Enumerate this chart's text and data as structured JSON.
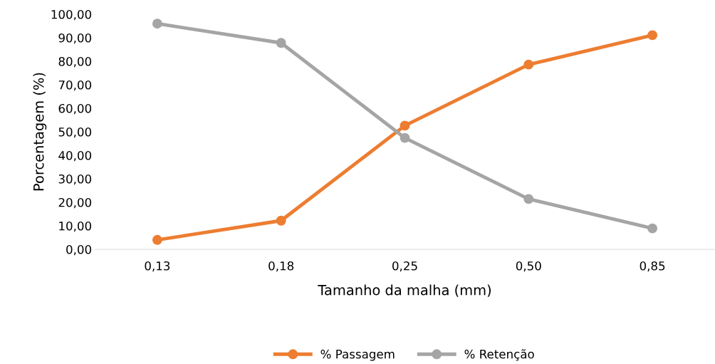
{
  "chart_data": {
    "type": "line",
    "xlabel": "Tamanho da malha (mm)",
    "ylabel": "Porcentagem (%)",
    "categories": [
      "0,13",
      "0,18",
      "0,25",
      "0,50",
      "0,85"
    ],
    "series": [
      {
        "name": "% Passagem",
        "color": "#ed7d31",
        "values": [
          4.0,
          12.2,
          52.6,
          78.6,
          91.1
        ]
      },
      {
        "name": "% Retenção",
        "color": "#a5a5a5",
        "values": [
          96.0,
          87.8,
          47.4,
          21.4,
          8.9
        ]
      }
    ],
    "ylim": [
      0,
      100
    ],
    "yticks": [
      {
        "value": 0,
        "label": "0,00"
      },
      {
        "value": 10,
        "label": "10,00"
      },
      {
        "value": 20,
        "label": "20,00"
      },
      {
        "value": 30,
        "label": "30,00"
      },
      {
        "value": 40,
        "label": "40,00"
      },
      {
        "value": 50,
        "label": "50,00"
      },
      {
        "value": 60,
        "label": "60,00"
      },
      {
        "value": 70,
        "label": "70,00"
      },
      {
        "value": 80,
        "label": "80,00"
      },
      {
        "value": 90,
        "label": "90,00"
      },
      {
        "value": 100,
        "label": "100,00"
      }
    ],
    "grid": false,
    "legend": "bottom",
    "marker": "circle",
    "line_style": "solid"
  }
}
